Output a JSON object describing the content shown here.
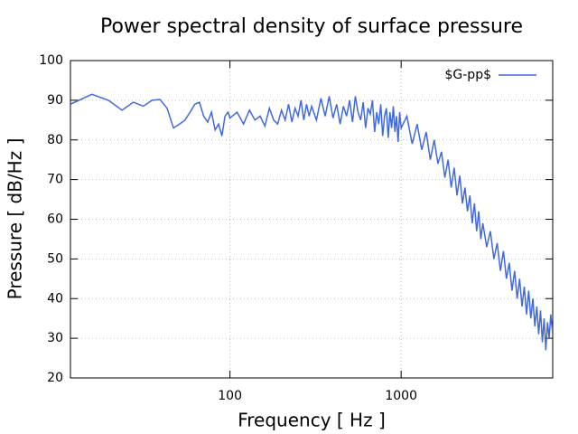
{
  "chart_data": {
    "type": "line",
    "title": "Power spectral density of surface pressure",
    "xlabel": "Frequency [ Hz ]",
    "ylabel": "Pressure [ dB/Hz ]",
    "xscale": "log",
    "xlim": [
      11.7,
      7680
    ],
    "xticks": [
      100,
      1000
    ],
    "ylim": [
      20,
      100
    ],
    "yticks": [
      20,
      30,
      40,
      50,
      60,
      70,
      80,
      90,
      100
    ],
    "grid": true,
    "legend": "top-right",
    "x": [
      11.7,
      15.6,
      19.5,
      23.4,
      27.3,
      31.2,
      35.1,
      39,
      42.9,
      46.8,
      50.7,
      54.6,
      58.5,
      62.4,
      66.3,
      70.2,
      74.1,
      78,
      81.9,
      85.8,
      89.7,
      93.6,
      97.5,
      100,
      110,
      120,
      130,
      140,
      150,
      160,
      170,
      180,
      190,
      200,
      210,
      220,
      230,
      240,
      250,
      260,
      270,
      280,
      290,
      300,
      320,
      340,
      360,
      380,
      400,
      420,
      440,
      460,
      480,
      500,
      520,
      540,
      560,
      580,
      600,
      620,
      640,
      660,
      680,
      700,
      720,
      740,
      760,
      780,
      800,
      820,
      840,
      860,
      880,
      900,
      920,
      940,
      960,
      980,
      1000,
      1080,
      1160,
      1240,
      1320,
      1400,
      1480,
      1560,
      1640,
      1720,
      1800,
      1880,
      1960,
      2040,
      2120,
      2200,
      2280,
      2360,
      2440,
      2520,
      2600,
      2680,
      2760,
      2840,
      2920,
      3000,
      3160,
      3320,
      3480,
      3640,
      3800,
      3960,
      4120,
      4280,
      4440,
      4600,
      4760,
      4920,
      5080,
      5240,
      5400,
      5560,
      5720,
      5880,
      6040,
      6200,
      6360,
      6520,
      6680,
      6840,
      7000,
      7160,
      7320,
      7480,
      7680
    ],
    "series": [
      {
        "name": "$G-pp$",
        "color": "#4169e1",
        "values": [
          89,
          91.5,
          90,
          87.5,
          89.5,
          88.5,
          90,
          90.2,
          88,
          83,
          84,
          85,
          87,
          89,
          89.5,
          86,
          84.5,
          87,
          82.5,
          84,
          81,
          86,
          87,
          85.5,
          87,
          84,
          87.5,
          85,
          86,
          83.5,
          88,
          85,
          84,
          87.5,
          85,
          89,
          84.5,
          88,
          86,
          90,
          85,
          89,
          86,
          88.5,
          85,
          90.5,
          86,
          91,
          85.5,
          89,
          84,
          88.5,
          86,
          90,
          84.5,
          91,
          87,
          85,
          89.5,
          83,
          88,
          86.5,
          90,
          82,
          87,
          84,
          89,
          81,
          86,
          88,
          80.5,
          87,
          83,
          88.5,
          82,
          86,
          79.5,
          87,
          83,
          86,
          79,
          84,
          77.5,
          82,
          75,
          80,
          74,
          77,
          70.5,
          75,
          68,
          73,
          66,
          71,
          64,
          68,
          62,
          66,
          59,
          64,
          57,
          62,
          55,
          59,
          53,
          57,
          50,
          54,
          47,
          52,
          45,
          49,
          42,
          47,
          40,
          45,
          38,
          43,
          36,
          42,
          35,
          40,
          33,
          38,
          31,
          37,
          29,
          35,
          27,
          34,
          30,
          36,
          31
        ]
      }
    ]
  }
}
